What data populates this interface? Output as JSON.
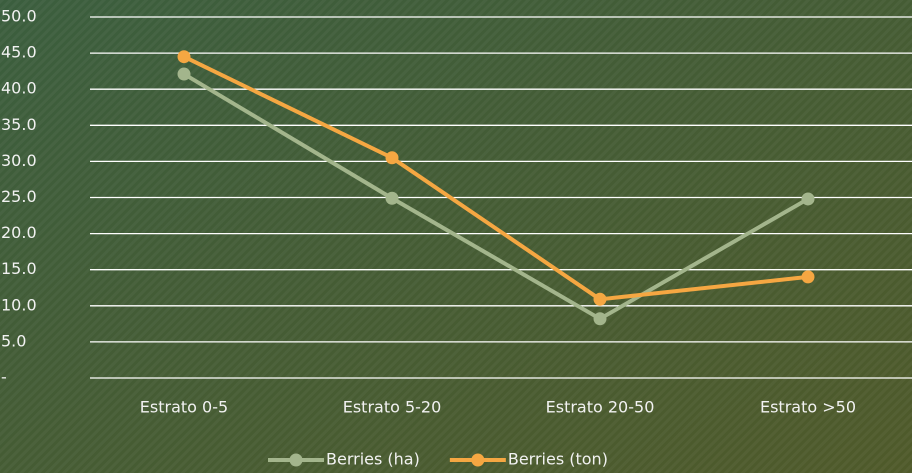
{
  "chart_data": {
    "type": "line",
    "categories": [
      "Estrato 0-5",
      "Estrato 5-20",
      "Estrato 20-50",
      "Estrato >50"
    ],
    "series": [
      {
        "name": "Berries (ha)",
        "color": "#a3b58c",
        "values": [
          42.1,
          24.9,
          8.2,
          24.8
        ]
      },
      {
        "name": "Berries (ton)",
        "color": "#f5a742",
        "values": [
          44.5,
          30.5,
          10.9,
          14.0
        ]
      }
    ],
    "ylim": [
      0,
      50
    ],
    "yticks": [
      {
        "value": 0,
        "label": "-"
      },
      {
        "value": 5,
        "label": "5.0"
      },
      {
        "value": 10,
        "label": "10.0"
      },
      {
        "value": 15,
        "label": "15.0"
      },
      {
        "value": 20,
        "label": "20.0"
      },
      {
        "value": 25,
        "label": "25.0"
      },
      {
        "value": 30,
        "label": "30.0"
      },
      {
        "value": 35,
        "label": "35.0"
      },
      {
        "value": 40,
        "label": "40.0"
      },
      {
        "value": 45,
        "label": "45.0"
      },
      {
        "value": 50,
        "label": "50.0"
      }
    ],
    "grid": true,
    "legend": "bottom"
  }
}
